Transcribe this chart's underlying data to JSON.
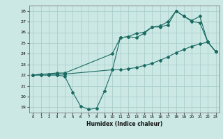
{
  "xlabel": "Humidex (Indice chaleur)",
  "bg_color": "#cce8e5",
  "grid_color": "#aacfcc",
  "line_color": "#1a6b62",
  "xlim": [
    -0.5,
    23.5
  ],
  "ylim": [
    18.5,
    28.5
  ],
  "xticks": [
    0,
    1,
    2,
    3,
    4,
    5,
    6,
    7,
    8,
    9,
    10,
    11,
    12,
    13,
    14,
    15,
    16,
    17,
    18,
    19,
    20,
    21,
    22,
    23
  ],
  "yticks": [
    19,
    20,
    21,
    22,
    23,
    24,
    25,
    26,
    27,
    28
  ],
  "line1_x": [
    0,
    1,
    2,
    3,
    4,
    5,
    6,
    7,
    8,
    9,
    10,
    11,
    12,
    13,
    14,
    15,
    16,
    17,
    18,
    19,
    20,
    21,
    22,
    23
  ],
  "line1_y": [
    22,
    22,
    22,
    22,
    21.9,
    20.4,
    19.1,
    18.8,
    18.9,
    20.5,
    22.5,
    25.5,
    25.6,
    25.5,
    25.9,
    26.5,
    26.5,
    26.7,
    28,
    27.5,
    27,
    26.9,
    25.1,
    24.2
  ],
  "line2_x": [
    0,
    1,
    2,
    3,
    4,
    10,
    11,
    12,
    13,
    14,
    15,
    16,
    17,
    18,
    19,
    20,
    21,
    22,
    23
  ],
  "line2_y": [
    22,
    22.1,
    22.1,
    22.1,
    22.1,
    22.5,
    22.5,
    22.6,
    22.7,
    22.9,
    23.1,
    23.4,
    23.7,
    24.1,
    24.4,
    24.7,
    24.9,
    25.1,
    24.2
  ],
  "line3_x": [
    0,
    3,
    4,
    10,
    11,
    12,
    13,
    14,
    15,
    16,
    17,
    18,
    19,
    20,
    21,
    22,
    23
  ],
  "line3_y": [
    22,
    22.2,
    22.2,
    24.0,
    25.5,
    25.6,
    25.9,
    26.0,
    26.5,
    26.6,
    27.0,
    28.0,
    27.5,
    27.1,
    27.5,
    25.1,
    24.2
  ]
}
